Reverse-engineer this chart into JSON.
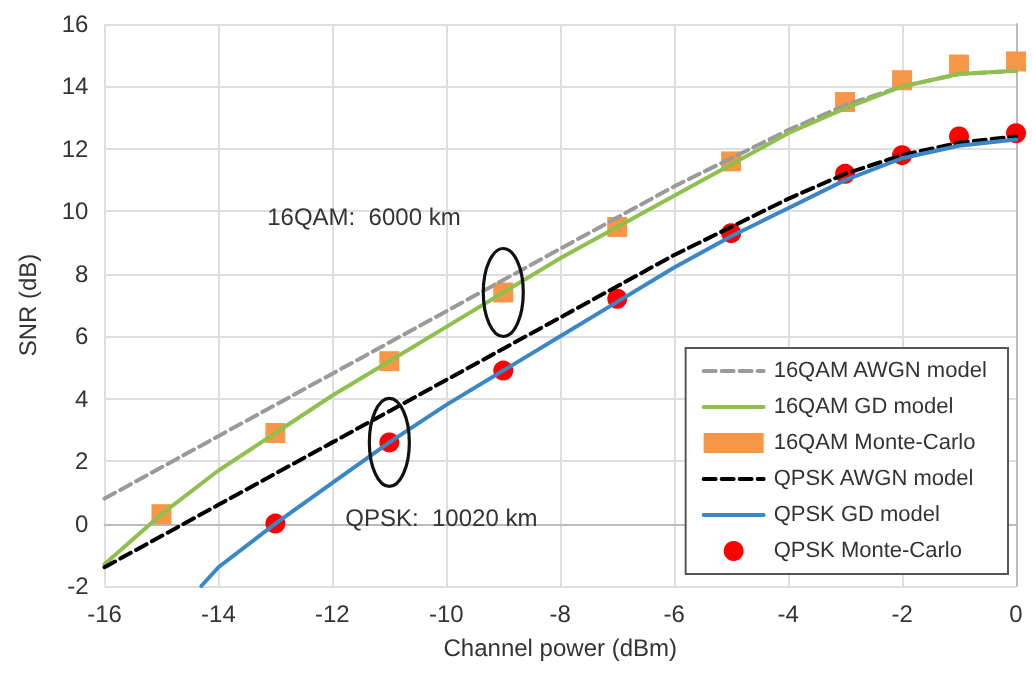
{
  "chart_data": {
    "type": "line",
    "xlabel": "Channel power (dBm)",
    "ylabel": "SNR (dB)",
    "xlim": [
      -16,
      0
    ],
    "xticks": [
      -16,
      -14,
      -12,
      -10,
      -8,
      -6,
      -4,
      -2,
      0
    ],
    "ylim": [
      -2,
      16
    ],
    "yticks": [
      -2,
      0,
      2,
      4,
      6,
      8,
      10,
      12,
      14,
      16
    ],
    "grid": true,
    "legend": "bottom right",
    "annotations": [
      "16QAM:  6000 km",
      {
        "text": "QPSK:  10020 km",
        "x": -11,
        "y": 2.6
      }
    ],
    "series": [
      {
        "name": "16QAM AWGN model",
        "color": "#9a9a9a",
        "line_style": "dashed",
        "marker": "none",
        "x": [
          -16,
          -15,
          -14,
          -13,
          -12,
          -11,
          -10,
          -9,
          -8,
          -7,
          -6,
          -5,
          -4,
          -3,
          -2,
          -1,
          0
        ],
        "values": [
          0.8,
          1.8,
          2.8,
          3.8,
          4.8,
          5.8,
          6.8,
          7.8,
          8.8,
          9.8,
          10.8,
          11.7,
          12.6,
          13.4,
          14.0,
          14.4,
          14.5
        ]
      },
      {
        "name": "16QAM GD model",
        "color": "#8dc04c",
        "line_style": "solid",
        "marker": "none",
        "x": [
          -16,
          -15,
          -14,
          -13,
          -12,
          -11,
          -10,
          -9,
          -8,
          -7,
          -6,
          -5,
          -4,
          -3,
          -2,
          -1,
          0
        ],
        "values": [
          -1.3,
          0.3,
          1.7,
          2.9,
          4.1,
          5.2,
          6.3,
          7.4,
          8.5,
          9.5,
          10.5,
          11.5,
          12.5,
          13.3,
          14.0,
          14.4,
          14.5
        ]
      },
      {
        "name": "16QAM Monte-Carlo",
        "type": "scatter",
        "color": "#f79646",
        "marker": "square",
        "x": [
          -15,
          -13,
          -11,
          -9,
          -7,
          -5,
          -3,
          -2,
          -1,
          0
        ],
        "values": [
          0.3,
          2.9,
          5.2,
          7.4,
          9.5,
          11.6,
          13.5,
          14.2,
          14.7,
          14.8
        ]
      },
      {
        "name": "QPSK AWGN model",
        "color": "#000000",
        "line_style": "dashed",
        "marker": "none",
        "x": [
          -16,
          -15,
          -14,
          -13,
          -12,
          -11,
          -10,
          -9,
          -8,
          -7,
          -6,
          -5,
          -4,
          -3,
          -2,
          -1,
          0
        ],
        "values": [
          -1.4,
          -0.4,
          0.6,
          1.6,
          2.6,
          3.6,
          4.6,
          5.6,
          6.6,
          7.6,
          8.6,
          9.5,
          10.4,
          11.2,
          11.8,
          12.2,
          12.4
        ]
      },
      {
        "name": "QPSK GD model",
        "color": "#3a87c8",
        "line_style": "solid",
        "marker": "none",
        "x": [
          -14.3,
          -14,
          -13,
          -12,
          -11,
          -10,
          -9,
          -8,
          -7,
          -6,
          -5,
          -4,
          -3,
          -2,
          -1,
          0
        ],
        "values": [
          -2,
          -1.4,
          0,
          1.3,
          2.6,
          3.8,
          4.9,
          6.0,
          7.1,
          8.2,
          9.2,
          10.1,
          11.0,
          11.7,
          12.1,
          12.3
        ]
      },
      {
        "name": "QPSK Monte-Carlo",
        "type": "scatter",
        "color": "#ff0000",
        "marker": "circle",
        "x": [
          -13,
          -11,
          -9,
          -7,
          -5,
          -3,
          -2,
          -1,
          0
        ],
        "values": [
          0,
          2.6,
          4.9,
          7.2,
          9.3,
          11.2,
          11.8,
          12.4,
          12.5
        ]
      }
    ]
  }
}
